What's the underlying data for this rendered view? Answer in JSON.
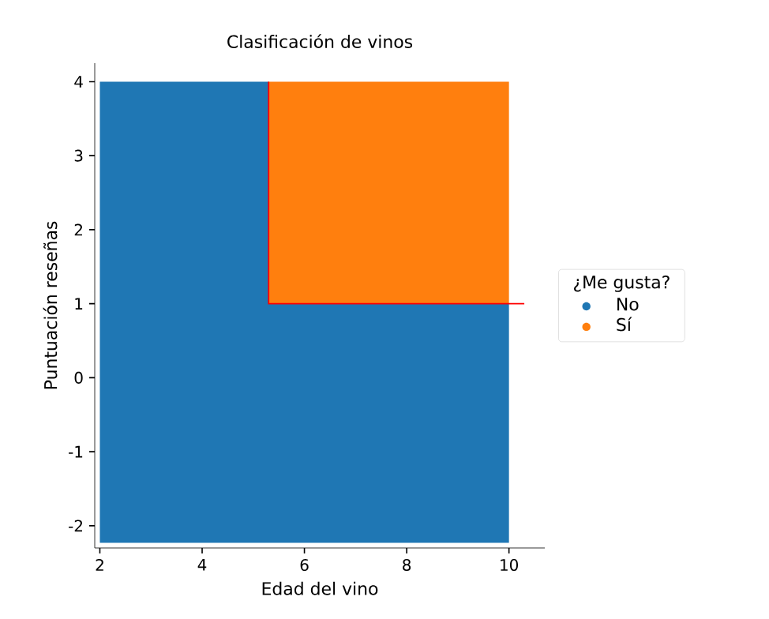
{
  "chart_data": {
    "type": "area",
    "title": "Clasificación de vinos",
    "xlabel": "Edad del vino",
    "ylabel": "Puntuación reseñas",
    "legend_title": "¿Me gusta?",
    "series": [
      {
        "name": "No",
        "color": "#1f77b4",
        "x": [
          2.0,
          5.3,
          5.3,
          10.0,
          10.0,
          2.0
        ],
        "values": [
          4,
          4,
          1,
          1,
          -2.23,
          -2.23
        ]
      },
      {
        "name": "Sí",
        "color": "#ff7f0e",
        "x": [
          5.3,
          10.0,
          10.0,
          5.3
        ],
        "values": [
          4,
          4,
          1,
          1
        ]
      },
      {
        "type": "line",
        "color": "#ff0000",
        "x": [
          5.3,
          5.3,
          10.3
        ],
        "values": [
          4,
          1,
          1
        ]
      }
    ],
    "xlim": [
      1.9,
      10.7
    ],
    "ylim": [
      -2.3,
      4.25
    ],
    "xticks": [
      2,
      4,
      6,
      8,
      10
    ],
    "yticks": [
      -2,
      -1,
      0,
      1,
      2,
      3,
      4
    ],
    "grid": false,
    "legend": "right"
  }
}
